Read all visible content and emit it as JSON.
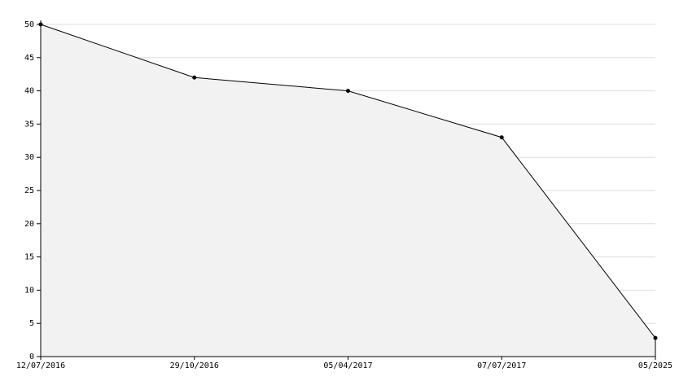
{
  "chart_data": {
    "type": "area",
    "categories": [
      "12/07/2016",
      "29/10/2016",
      "05/04/2017",
      "07/07/2017",
      "05/2025"
    ],
    "values": [
      50,
      42,
      40,
      33,
      2.8
    ],
    "color": "#000000",
    "fill": "#f2f2f2",
    "ylim": [
      0,
      50
    ],
    "yticks": [
      0,
      5,
      10,
      15,
      20,
      25,
      30,
      35,
      40,
      45,
      50
    ],
    "grid": true
  }
}
